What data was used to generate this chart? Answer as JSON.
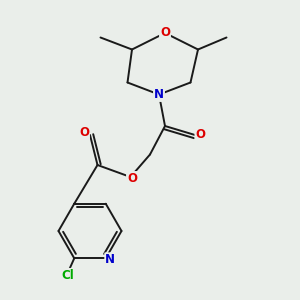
{
  "bg_color": "#eaeeea",
  "bond_color": "#1a1a1a",
  "atom_colors": {
    "O": "#dd0000",
    "N": "#0000cc",
    "Cl": "#00aa00",
    "C": "#1a1a1a"
  },
  "bond_width": 1.4,
  "font_size": 8.5
}
